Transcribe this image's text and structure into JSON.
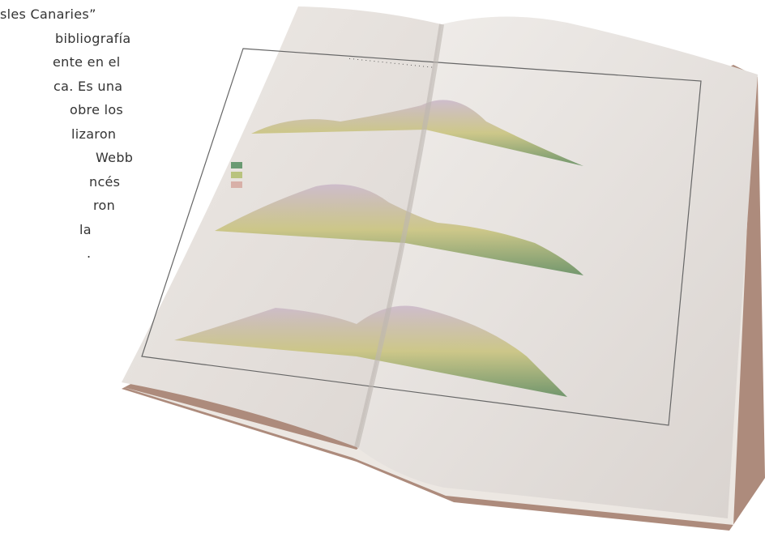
{
  "text_lines": [
    "sles Canaries”",
    "bibliografía",
    "ente en el",
    "ca. Es una",
    "obre los",
    "lizaron",
    "Webb",
    "ncés",
    "ron",
    "la",
    "."
  ]
}
